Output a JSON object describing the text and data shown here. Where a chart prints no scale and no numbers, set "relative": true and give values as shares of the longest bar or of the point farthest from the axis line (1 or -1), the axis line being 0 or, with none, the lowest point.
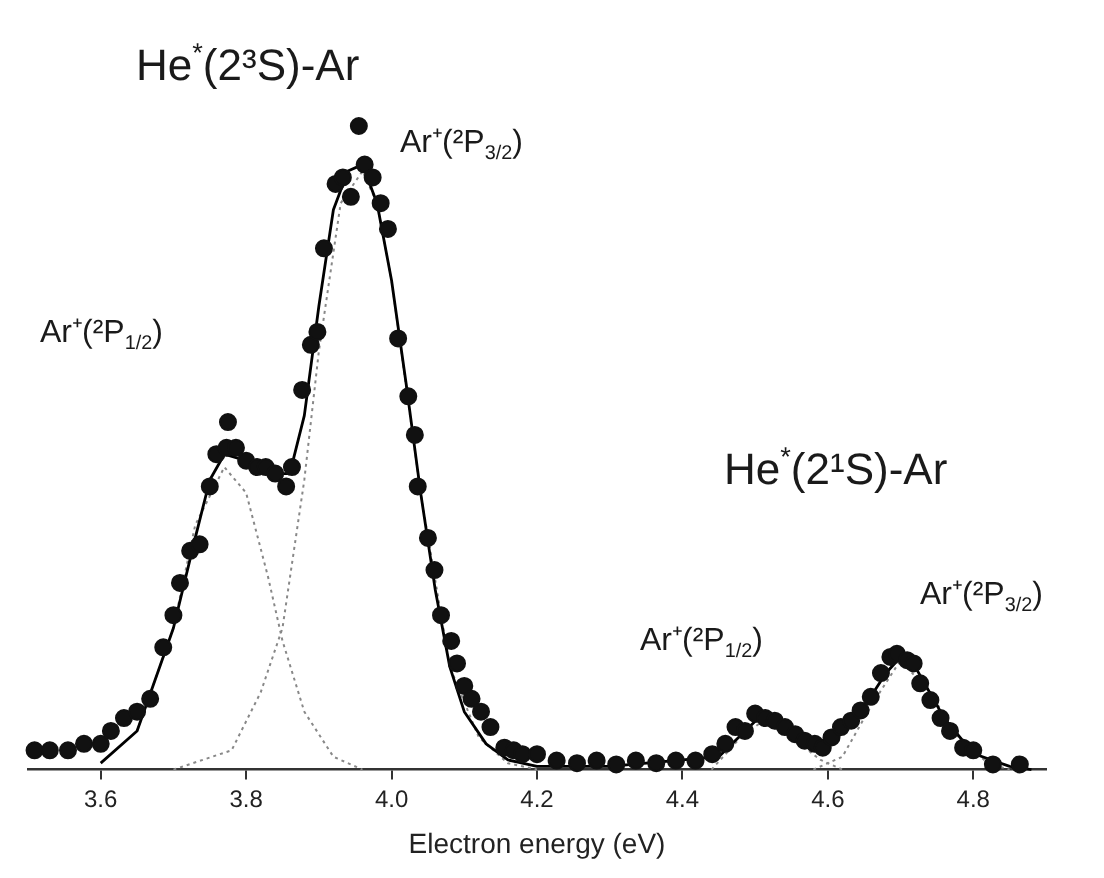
{
  "chart_data": {
    "type": "scatter",
    "title": "He$^{*}$(2³S)-Ar",
    "xlabel": "Electron energy (eV)",
    "relative": true,
    "xlim": [
      3.5,
      4.9
    ],
    "xticks": [
      3.6,
      3.8,
      {
        "value": 4.0,
        "label": "4.0"
      },
      4.2,
      4.4,
      4.6,
      4.8
    ],
    "grid": false,
    "legend": false,
    "tick_labels": "x",
    "series": [
      {
        "type": "scatter",
        "marker": "circle",
        "color": "#111111",
        "x": [
          3.509,
          3.53,
          3.555,
          3.577,
          3.6,
          3.614,
          3.632,
          3.65,
          3.668,
          3.686,
          3.7,
          3.709,
          3.723,
          3.736,
          3.75,
          3.759,
          3.773,
          3.775,
          3.786,
          3.8,
          3.815,
          3.827,
          3.84,
          3.855,
          3.863,
          3.877,
          3.889,
          3.898,
          3.907,
          3.923,
          3.933,
          3.944,
          3.955,
          3.963,
          3.974,
          3.985,
          3.995,
          4.009,
          4.023,
          4.032,
          4.036,
          4.05,
          4.059,
          4.068,
          4.082,
          4.09,
          4.1,
          4.11,
          4.123,
          4.136,
          4.155,
          4.168,
          4.18,
          4.2,
          4.227,
          4.255,
          4.282,
          4.309,
          4.336,
          4.364,
          4.391,
          4.418,
          4.441,
          4.459,
          4.473,
          4.486,
          4.5,
          4.514,
          4.527,
          4.541,
          4.555,
          4.568,
          4.582,
          4.593,
          4.605,
          4.618,
          4.632,
          4.645,
          4.659,
          4.673,
          4.686,
          4.695,
          4.709,
          4.718,
          4.727,
          4.741,
          4.755,
          4.768,
          4.786,
          4.8,
          4.827,
          4.864
        ],
        "values": [
          0.03,
          0.03,
          0.03,
          0.04,
          0.04,
          0.06,
          0.08,
          0.09,
          0.11,
          0.19,
          0.24,
          0.29,
          0.34,
          0.35,
          0.44,
          0.49,
          0.5,
          0.54,
          0.5,
          0.48,
          0.47,
          0.47,
          0.46,
          0.44,
          0.47,
          0.59,
          0.66,
          0.68,
          0.81,
          0.91,
          0.92,
          0.89,
          1,
          0.94,
          0.92,
          0.88,
          0.84,
          0.67,
          0.58,
          0.52,
          0.44,
          0.36,
          0.31,
          0.24,
          0.2,
          0.165,
          0.13,
          0.11,
          0.09,
          0.066,
          0.034,
          0.03,
          0.024,
          0.024,
          0.014,
          0.01,
          0.014,
          0.008,
          0.014,
          0.01,
          0.014,
          0.014,
          0.024,
          0.04,
          0.066,
          0.06,
          0.087,
          0.08,
          0.076,
          0.066,
          0.055,
          0.045,
          0.04,
          0.034,
          0.05,
          0.066,
          0.076,
          0.092,
          0.113,
          0.15,
          0.175,
          0.18,
          0.17,
          0.165,
          0.134,
          0.108,
          0.08,
          0.06,
          0.034,
          0.03,
          0.008,
          0.008
        ]
      },
      {
        "type": "line",
        "marker": "none",
        "line_style": "solid",
        "color": "#000000",
        "x": [
          3.6,
          3.65,
          3.7,
          3.73,
          3.75,
          3.77,
          3.8,
          3.83,
          3.86,
          3.88,
          3.9,
          3.92,
          3.94,
          3.96,
          3.98,
          4.0,
          4.02,
          4.04,
          4.06,
          4.08,
          4.1,
          4.13,
          4.16,
          4.2,
          4.3,
          4.45,
          4.5,
          4.53,
          4.56,
          4.6,
          4.64,
          4.68,
          4.7,
          4.72,
          4.76,
          4.8,
          4.85,
          4.88
        ],
        "values": [
          0.01,
          0.06,
          0.22,
          0.36,
          0.45,
          0.49,
          0.48,
          0.46,
          0.46,
          0.55,
          0.72,
          0.87,
          0.93,
          0.94,
          0.88,
          0.76,
          0.6,
          0.43,
          0.28,
          0.16,
          0.09,
          0.04,
          0.015,
          0.005,
          0.005,
          0.02,
          0.075,
          0.078,
          0.055,
          0.035,
          0.08,
          0.15,
          0.175,
          0.16,
          0.08,
          0.025,
          0.005,
          0
        ]
      },
      {
        "type": "line",
        "marker": "none",
        "line_style": "dotted",
        "color": "#888888",
        "x": [
          3.65,
          3.7,
          3.73,
          3.77,
          3.8,
          3.83,
          3.85,
          3.88,
          3.92,
          3.96
        ],
        "values": [
          0.06,
          0.22,
          0.38,
          0.47,
          0.43,
          0.3,
          0.2,
          0.09,
          0.02,
          0
        ]
      },
      {
        "type": "line",
        "marker": "none",
        "line_style": "dotted",
        "color": "#888888",
        "x": [
          3.7,
          3.78,
          3.82,
          3.85,
          3.88,
          3.9,
          3.93,
          3.96,
          3.98,
          4.0,
          4.04,
          4.08,
          4.12,
          4.16,
          4.2
        ],
        "values": [
          0,
          0.03,
          0.12,
          0.22,
          0.45,
          0.65,
          0.88,
          0.93,
          0.88,
          0.76,
          0.43,
          0.16,
          0.05,
          0.01,
          0
        ]
      },
      {
        "type": "line",
        "marker": "none",
        "line_style": "dotted",
        "color": "#888888",
        "x": [
          4.44,
          4.48,
          4.51,
          4.55,
          4.59,
          4.62
        ],
        "values": [
          0,
          0.05,
          0.075,
          0.05,
          0.015,
          0
        ]
      },
      {
        "type": "line",
        "marker": "none",
        "line_style": "dotted",
        "color": "#888888",
        "x": [
          4.58,
          4.62,
          4.66,
          4.7,
          4.74,
          4.78,
          4.82,
          4.85
        ],
        "values": [
          0,
          0.02,
          0.1,
          0.17,
          0.12,
          0.05,
          0.01,
          0
        ]
      }
    ],
    "annotations": [
      "Ar⁺(²P$_{3/2}$)",
      "Ar⁺(²P$_{1/2}$)",
      "He$^{*}$(2¹S)-Ar",
      "Ar⁺(²P$_{1/2}$)",
      "Ar⁺(²P$_{3/2}$)"
    ]
  }
}
